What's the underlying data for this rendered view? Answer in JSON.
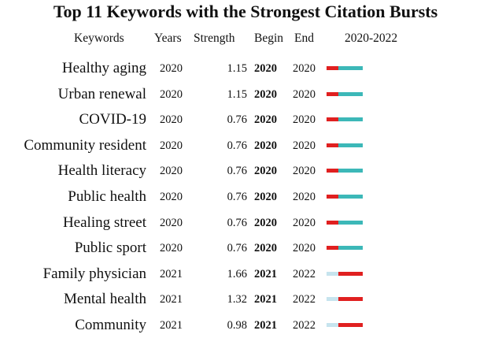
{
  "chart_data": {
    "type": "table",
    "title": "Top 11 Keywords with the Strongest Citation Bursts",
    "columns": {
      "keywords": "Keywords",
      "years": "Years",
      "strength": "Strength",
      "begin": "Begin",
      "end": "End",
      "timeline": "2020-2022"
    },
    "range": [
      2020,
      2022
    ],
    "colors": {
      "burst": "#e02020",
      "active": "#3cb8b8",
      "inactive": "#c6e4ee"
    },
    "rows": [
      {
        "keyword": "Healthy aging",
        "year": "2020",
        "strength": "1.15",
        "begin": "2020",
        "end": "2020"
      },
      {
        "keyword": "Urban renewal",
        "year": "2020",
        "strength": "1.15",
        "begin": "2020",
        "end": "2020"
      },
      {
        "keyword": "COVID-19",
        "year": "2020",
        "strength": "0.76",
        "begin": "2020",
        "end": "2020"
      },
      {
        "keyword": "Community resident",
        "year": "2020",
        "strength": "0.76",
        "begin": "2020",
        "end": "2020"
      },
      {
        "keyword": "Health literacy",
        "year": "2020",
        "strength": "0.76",
        "begin": "2020",
        "end": "2020"
      },
      {
        "keyword": "Public health",
        "year": "2020",
        "strength": "0.76",
        "begin": "2020",
        "end": "2020"
      },
      {
        "keyword": "Healing street",
        "year": "2020",
        "strength": "0.76",
        "begin": "2020",
        "end": "2020"
      },
      {
        "keyword": "Public sport",
        "year": "2020",
        "strength": "0.76",
        "begin": "2020",
        "end": "2020"
      },
      {
        "keyword": "Family physician",
        "year": "2021",
        "strength": "1.66",
        "begin": "2021",
        "end": "2022"
      },
      {
        "keyword": "Mental health",
        "year": "2021",
        "strength": "1.32",
        "begin": "2021",
        "end": "2022"
      },
      {
        "keyword": "Community",
        "year": "2021",
        "strength": "0.98",
        "begin": "2021",
        "end": "2022"
      }
    ]
  }
}
